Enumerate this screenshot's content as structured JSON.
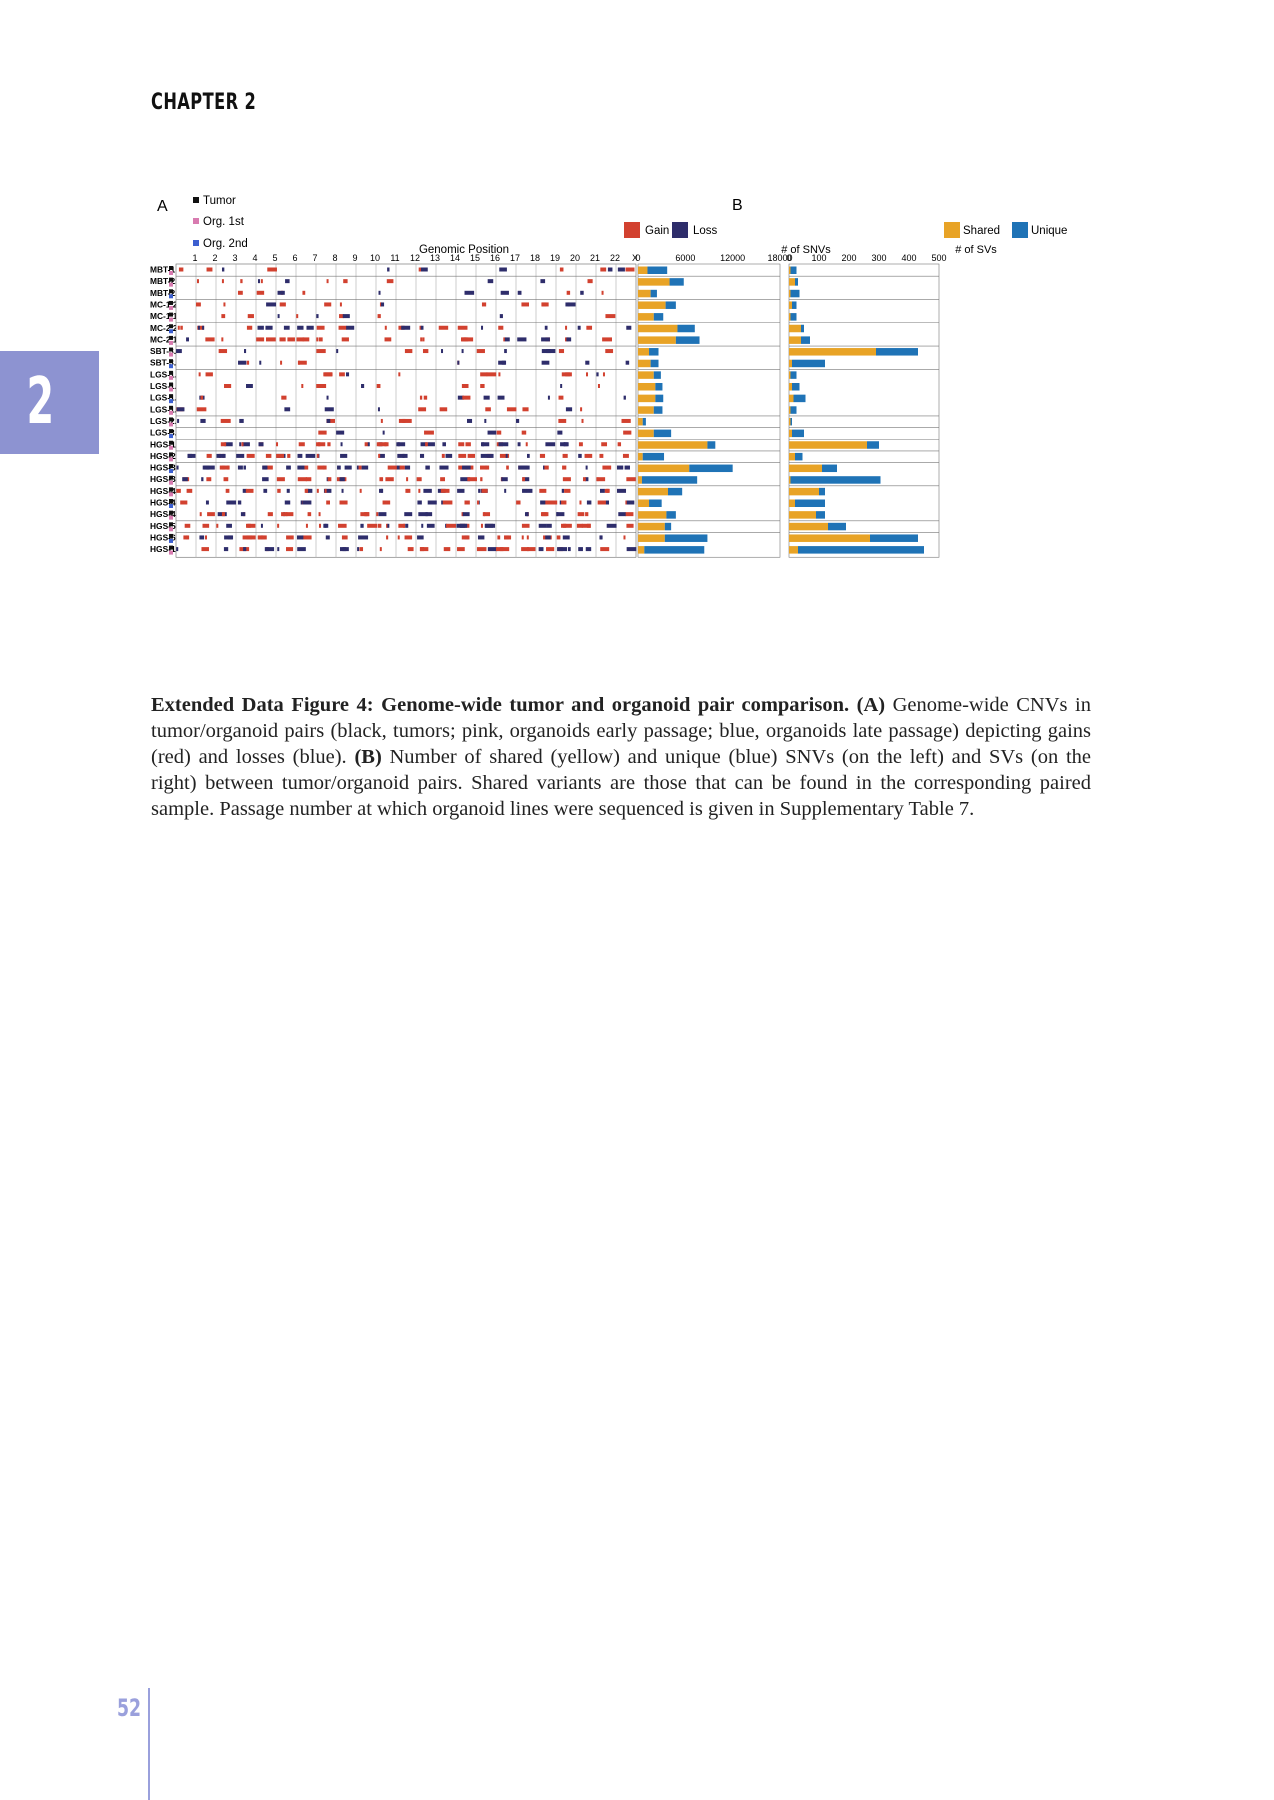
{
  "header": {
    "chapter": "CHAPTER 2",
    "tab_number": "2"
  },
  "figure": {
    "panel_a_label": "A",
    "panel_b_label": "B",
    "legend_sample": [
      "Tumor",
      "Org. 1st",
      "Org. 2nd"
    ],
    "legend_cnv": [
      "Gain",
      "Loss"
    ],
    "legend_variants": [
      "Shared",
      "Unique"
    ],
    "xaxis_title": "Genomic Position",
    "chromosomes": [
      "1",
      "2",
      "3",
      "4",
      "5",
      "6",
      "7",
      "8",
      "9",
      "10",
      "11",
      "12",
      "13",
      "14",
      "15",
      "16",
      "17",
      "18",
      "19",
      "20",
      "21",
      "22",
      "X"
    ],
    "snv_title": "# of SNVs",
    "snv_ticks": [
      "0",
      "6000",
      "12000",
      "18000"
    ],
    "sv_title": "# of SVs",
    "sv_ticks": [
      "0",
      "100",
      "200",
      "300",
      "400",
      "500"
    ],
    "colors": {
      "gain": "#d2412f",
      "loss": "#2e2d6b",
      "shared": "#e8a326",
      "unique": "#1f73b6",
      "tumor": "#111111",
      "org1": "#d87bb0",
      "org2": "#3c5fd0"
    }
  },
  "chart_data": {
    "type": "bar",
    "stacked": true,
    "orientation": "horizontal",
    "samples": [
      {
        "name": "MBT-1",
        "pair": "MBT-1"
      },
      {
        "name": "MBT-2.2",
        "pair": "MBT-2"
      },
      {
        "name": "MBT-2.1",
        "pair": "MBT-2"
      },
      {
        "name": "MC-1.2",
        "pair": "MC-1"
      },
      {
        "name": "MC-1.1",
        "pair": "MC-1"
      },
      {
        "name": "MC-2.2",
        "pair": "MC-2"
      },
      {
        "name": "MC-2.1",
        "pair": "MC-2"
      },
      {
        "name": "SBT-3.2",
        "pair": "SBT-3"
      },
      {
        "name": "SBT-3.1",
        "pair": "SBT-3"
      },
      {
        "name": "LGS-1.4",
        "pair": "LGS-1"
      },
      {
        "name": "LGS-1.3",
        "pair": "LGS-1"
      },
      {
        "name": "LGS-1.2",
        "pair": "LGS-1"
      },
      {
        "name": "LGS-1.1",
        "pair": "LGS-1"
      },
      {
        "name": "LGS-2.2",
        "pair": "LGS-2"
      },
      {
        "name": "LGS-3.2",
        "pair": "LGS-3"
      },
      {
        "name": "HGS-1",
        "pair": "HGS-1"
      },
      {
        "name": "HGS-2",
        "pair": "HGS-2"
      },
      {
        "name": "HGS-3.2",
        "pair": "HGS-3"
      },
      {
        "name": "HGS-3.1",
        "pair": "HGS-3"
      },
      {
        "name": "HGS-4.5",
        "pair": "HGS-4"
      },
      {
        "name": "HGS-4.3",
        "pair": "HGS-4"
      },
      {
        "name": "HGS-4.1",
        "pair": "HGS-4"
      },
      {
        "name": "HGS-5.1",
        "pair": "HGS-5"
      },
      {
        "name": "HGS-6",
        "pair": "HGS-6"
      },
      {
        "name": "HGS-19",
        "pair": "HGS-19"
      }
    ],
    "series": [
      {
        "name": "Shared",
        "snv": [
          1200,
          4000,
          1600,
          3500,
          2000,
          5000,
          4800,
          1400,
          1600,
          2000,
          2200,
          2200,
          2000,
          600,
          2000,
          8800,
          600,
          6500,
          500,
          3800,
          1400,
          3600,
          3400,
          3400,
          800
        ],
        "sv": [
          5,
          20,
          5,
          10,
          5,
          40,
          40,
          290,
          10,
          5,
          10,
          15,
          5,
          5,
          10,
          260,
          20,
          110,
          5,
          100,
          20,
          90,
          130,
          270,
          30
        ]
      },
      {
        "name": "Unique",
        "snv": [
          2500,
          1800,
          800,
          1300,
          1200,
          2200,
          3000,
          1200,
          1000,
          900,
          900,
          1000,
          1100,
          400,
          2200,
          1000,
          2700,
          5500,
          7000,
          1800,
          1600,
          1200,
          800,
          5400,
          7600
        ],
        "sv": [
          20,
          10,
          30,
          15,
          20,
          10,
          30,
          140,
          110,
          20,
          25,
          40,
          20,
          5,
          40,
          40,
          25,
          50,
          300,
          20,
          100,
          30,
          60,
          160,
          420
        ]
      }
    ],
    "snv_xlim": [
      0,
      18000
    ],
    "sv_xlim": [
      0,
      500
    ]
  },
  "caption": {
    "title": "Extended Data Figure 4: Genome-wide tumor and organoid pair comparison.",
    "part_a_label": "(A)",
    "part_a_text": " Genome-wide CNVs in tumor/organoid pairs (black, tumors; pink, organoids early passage; blue, organoids late passage) depicting gains (red) and losses (blue). ",
    "part_b_label": "(B)",
    "part_b_text": " Number of shared (yellow) and unique (blue) SNVs (on the left) and SVs (on the right) between tumor/organoid pairs. Shared variants are those that can be found in the corresponding paired sample. Passage number at which organoid lines were sequenced is given in Supplementary Table 7."
  },
  "footer": {
    "page_number": "52"
  }
}
